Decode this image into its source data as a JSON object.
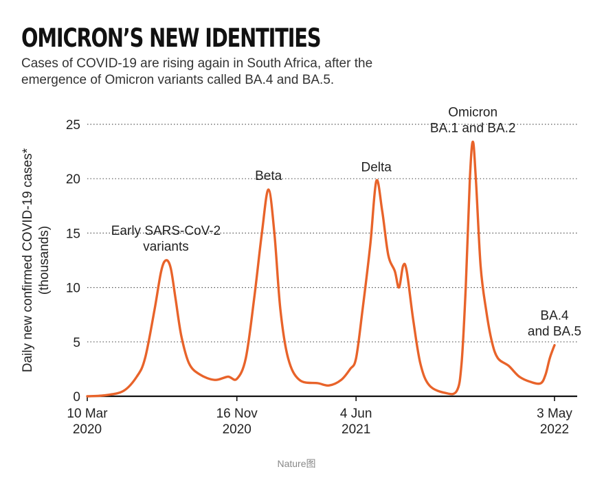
{
  "title": "OMICRON’S NEW IDENTITIES",
  "subtitle": "Cases of COVID-19 are rising again in South Africa, after the emergence of Omicron variants called BA.4 and BA.5.",
  "caption": "Nature图",
  "chart_data": {
    "type": "line",
    "ylabel": [
      "Daily new confirmed COVID-19 cases*",
      "(thousands)"
    ],
    "xlabel": "",
    "ylim": [
      0,
      25
    ],
    "xlim": [
      "2020-03-10",
      "2022-05-03"
    ],
    "yticks": [
      0,
      5,
      10,
      15,
      20,
      25
    ],
    "xticks": [
      {
        "date": "2020-03-10",
        "label": [
          "10 Mar",
          "2020"
        ]
      },
      {
        "date": "2020-11-16",
        "label": [
          "16 Nov",
          "2020"
        ]
      },
      {
        "date": "2021-06-04",
        "label": [
          "4 Jun",
          "2021"
        ]
      },
      {
        "date": "2022-05-03",
        "label": [
          "3 May",
          "2022"
        ]
      }
    ],
    "grid": "horizontal-dotted",
    "color": "#e8632a",
    "series": [
      {
        "points": [
          [
            "2020-03-10",
            0
          ],
          [
            "2020-04-10",
            0.1
          ],
          [
            "2020-05-10",
            0.5
          ],
          [
            "2020-06-01",
            1.8
          ],
          [
            "2020-06-15",
            3.5
          ],
          [
            "2020-07-01",
            8
          ],
          [
            "2020-07-12",
            11.5
          ],
          [
            "2020-07-20",
            12.5
          ],
          [
            "2020-07-28",
            11.8
          ],
          [
            "2020-08-05",
            9
          ],
          [
            "2020-08-15",
            5.5
          ],
          [
            "2020-08-28",
            3
          ],
          [
            "2020-09-15",
            2
          ],
          [
            "2020-10-10",
            1.5
          ],
          [
            "2020-11-01",
            1.8
          ],
          [
            "2020-11-16",
            1.6
          ],
          [
            "2020-12-01",
            3.5
          ],
          [
            "2020-12-15",
            9
          ],
          [
            "2020-12-28",
            15
          ],
          [
            "2021-01-08",
            19
          ],
          [
            "2021-01-18",
            15
          ],
          [
            "2021-01-28",
            8
          ],
          [
            "2021-02-10",
            3.5
          ],
          [
            "2021-03-01",
            1.5
          ],
          [
            "2021-04-01",
            1.2
          ],
          [
            "2021-04-20",
            1
          ],
          [
            "2021-05-10",
            1.5
          ],
          [
            "2021-05-25",
            2.5
          ],
          [
            "2021-06-04",
            3.5
          ],
          [
            "2021-06-15",
            8
          ],
          [
            "2021-06-28",
            14
          ],
          [
            "2021-07-08",
            19.8
          ],
          [
            "2021-07-18",
            17
          ],
          [
            "2021-07-28",
            13
          ],
          [
            "2021-08-08",
            11.5
          ],
          [
            "2021-08-15",
            10
          ],
          [
            "2021-08-22",
            12
          ],
          [
            "2021-08-28",
            11.5
          ],
          [
            "2021-09-08",
            7
          ],
          [
            "2021-09-20",
            3
          ],
          [
            "2021-10-05",
            1
          ],
          [
            "2021-11-01",
            0.3
          ],
          [
            "2021-11-20",
            0.5
          ],
          [
            "2021-11-28",
            3
          ],
          [
            "2021-12-05",
            10
          ],
          [
            "2021-12-12",
            20
          ],
          [
            "2021-12-17",
            23.4
          ],
          [
            "2021-12-22",
            20
          ],
          [
            "2021-12-30",
            12
          ],
          [
            "2022-01-08",
            8
          ],
          [
            "2022-01-18",
            5
          ],
          [
            "2022-01-28",
            3.5
          ],
          [
            "2022-02-15",
            2.8
          ],
          [
            "2022-03-05",
            1.8
          ],
          [
            "2022-03-25",
            1.3
          ],
          [
            "2022-04-10",
            1.2
          ],
          [
            "2022-04-18",
            2
          ],
          [
            "2022-04-25",
            3.5
          ],
          [
            "2022-05-03",
            4.7
          ]
        ]
      }
    ],
    "annotations": [
      {
        "lines": [
          "Early SARS-CoV-2",
          "variants"
        ],
        "date": "2020-07-20",
        "value": 12.5
      },
      {
        "lines": [
          "Beta"
        ],
        "date": "2021-01-08",
        "value": 19
      },
      {
        "lines": [
          "Delta"
        ],
        "date": "2021-07-08",
        "value": 19.8
      },
      {
        "lines": [
          "Omicron",
          "BA.1 and BA.2"
        ],
        "date": "2021-12-17",
        "value": 23.4
      },
      {
        "lines": [
          "BA.4",
          "and BA.5"
        ],
        "date": "2022-05-03",
        "value": 4.7
      }
    ]
  }
}
